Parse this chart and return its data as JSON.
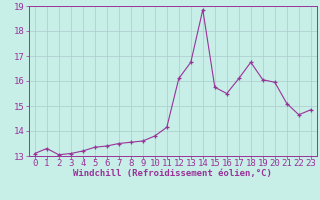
{
  "x": [
    0,
    1,
    2,
    3,
    4,
    5,
    6,
    7,
    8,
    9,
    10,
    11,
    12,
    13,
    14,
    15,
    16,
    17,
    18,
    19,
    20,
    21,
    22,
    23
  ],
  "y": [
    13.1,
    13.3,
    13.05,
    13.1,
    13.2,
    13.35,
    13.4,
    13.5,
    13.55,
    13.6,
    13.8,
    14.15,
    16.1,
    16.75,
    18.85,
    15.75,
    15.5,
    16.1,
    16.75,
    16.05,
    15.95,
    15.1,
    14.65,
    14.85
  ],
  "xlabel": "Windchill (Refroidissement éolien,°C)",
  "ylim": [
    13.0,
    19.0
  ],
  "xlim": [
    -0.5,
    23.5
  ],
  "yticks": [
    13,
    14,
    15,
    16,
    17,
    18,
    19
  ],
  "xticks": [
    0,
    1,
    2,
    3,
    4,
    5,
    6,
    7,
    8,
    9,
    10,
    11,
    12,
    13,
    14,
    15,
    16,
    17,
    18,
    19,
    20,
    21,
    22,
    23
  ],
  "line_color": "#993399",
  "bg_color": "#c8eee8",
  "grid_color": "#aacccc",
  "axis_color": "#993399",
  "tick_fontsize": 6.5,
  "xlabel_fontsize": 6.5
}
